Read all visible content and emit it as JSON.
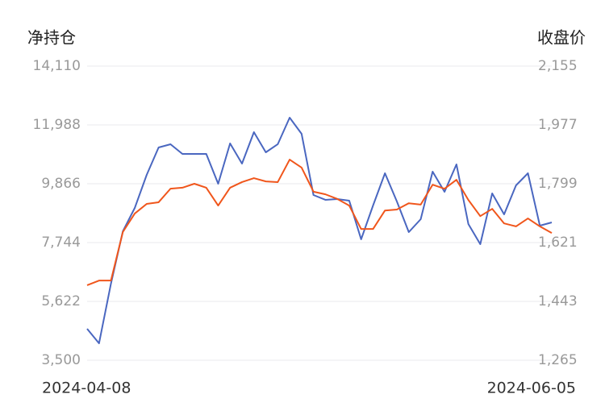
{
  "chart_data": {
    "type": "line",
    "y_label": "净持仓",
    "y2_label": "收盘价",
    "categories": [
      "2024-04-08",
      null,
      null,
      null,
      null,
      null,
      null,
      null,
      null,
      null,
      null,
      null,
      null,
      null,
      null,
      null,
      null,
      null,
      null,
      null,
      null,
      null,
      null,
      null,
      null,
      null,
      null,
      null,
      null,
      null,
      null,
      null,
      null,
      null,
      null,
      null,
      null,
      null,
      null,
      "2024-06-05"
    ],
    "ylim": [
      3500,
      14110
    ],
    "yticks": [
      {
        "value": 3500,
        "label": "3,500"
      },
      {
        "value": 5622,
        "label": "5,622"
      },
      {
        "value": 7744,
        "label": "7,744"
      },
      {
        "value": 9866,
        "label": "9,866"
      },
      {
        "value": 11988,
        "label": "11,988"
      },
      {
        "value": 14110,
        "label": "14,110"
      }
    ],
    "y2lim": [
      1265,
      2155
    ],
    "y2ticks": [
      {
        "value": 1265,
        "label": "1,265"
      },
      {
        "value": 1443,
        "label": "1,443"
      },
      {
        "value": 1621,
        "label": "1,621"
      },
      {
        "value": 1799,
        "label": "1,799"
      },
      {
        "value": 1977,
        "label": "1,977"
      },
      {
        "value": 2155,
        "label": "2,155"
      }
    ],
    "grid": true,
    "series": [
      {
        "name": "净持仓",
        "color": "#4a67c0",
        "axis": "y",
        "values": [
          4634,
          4110,
          6262,
          8151,
          8994,
          10186,
          11174,
          11291,
          10942,
          10942,
          10942,
          9866,
          11320,
          10593,
          11727,
          11000,
          11291,
          12250,
          11669,
          9459,
          9285,
          9314,
          9256,
          7861,
          9081,
          10244,
          9227,
          8122,
          8587,
          10302,
          9576,
          10564,
          8413,
          7686,
          9517,
          8762,
          9808,
          10244,
          8355,
          8471
        ]
      },
      {
        "name": "收盘价",
        "color": "#f0561c",
        "axis": "y2",
        "values": [
          1492,
          1506,
          1506,
          1653,
          1709,
          1738,
          1743,
          1784,
          1787,
          1799,
          1787,
          1733,
          1787,
          1804,
          1816,
          1806,
          1804,
          1872,
          1848,
          1775,
          1767,
          1753,
          1733,
          1662,
          1662,
          1718,
          1721,
          1740,
          1736,
          1796,
          1784,
          1811,
          1750,
          1701,
          1723,
          1679,
          1670,
          1694,
          1670,
          1650
        ]
      }
    ]
  }
}
